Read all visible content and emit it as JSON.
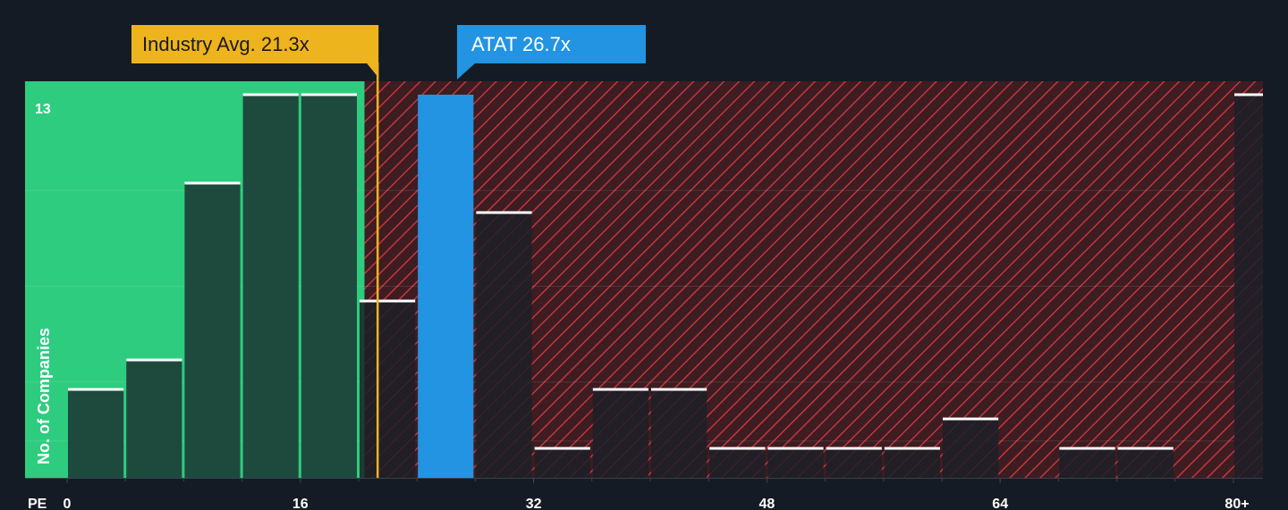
{
  "chart_data": {
    "type": "bar",
    "title": "",
    "xlabel": "PE",
    "ylabel": "No. of Companies",
    "x_bin_width": 4,
    "xlim": [
      0,
      82
    ],
    "ylim": [
      0,
      13.5
    ],
    "x_ticks": [
      {
        "value": 0,
        "label": "0"
      },
      {
        "value": 16,
        "label": "16"
      },
      {
        "value": 32,
        "label": "32"
      },
      {
        "value": 48,
        "label": "48"
      },
      {
        "value": 64,
        "label": "64"
      },
      {
        "value": 80,
        "label": "80+"
      }
    ],
    "y_ticks": [
      {
        "value": 13,
        "label": "13"
      }
    ],
    "bins": [
      {
        "start": 0,
        "count": 3
      },
      {
        "start": 4,
        "count": 4
      },
      {
        "start": 8,
        "count": 10
      },
      {
        "start": 12,
        "count": 13
      },
      {
        "start": 16,
        "count": 13
      },
      {
        "start": 20,
        "count": 6
      },
      {
        "start": 24,
        "count": 13
      },
      {
        "start": 28,
        "count": 9
      },
      {
        "start": 32,
        "count": 1
      },
      {
        "start": 36,
        "count": 3
      },
      {
        "start": 40,
        "count": 3
      },
      {
        "start": 44,
        "count": 1
      },
      {
        "start": 48,
        "count": 1
      },
      {
        "start": 52,
        "count": 1
      },
      {
        "start": 56,
        "count": 1
      },
      {
        "start": 60,
        "count": 2
      },
      {
        "start": 64,
        "count": 0
      },
      {
        "start": 68,
        "count": 1
      },
      {
        "start": 72,
        "count": 1
      },
      {
        "start": 76,
        "count": 0
      },
      {
        "start": 80,
        "count": 13
      }
    ],
    "highlight_bin_start": 24,
    "fair_zone_max": 20.4,
    "annotations": {
      "industry": {
        "label": "Industry Avg. 21.3x",
        "value": 21.3
      },
      "company": {
        "label": "ATAT 26.7x",
        "value": 26.7
      }
    },
    "colors": {
      "background": "#151b24",
      "fair_zone": "#2ecc7f",
      "bar_in_zone": "#1e4a3d",
      "bar_expensive": "#1c1f27",
      "hatch_background": "#3d1c22",
      "hatch_line": "#c0373d",
      "highlight_bar": "#2394e2",
      "industry_marker": "#eeb41e",
      "bar_cap": "#ffffff",
      "gridline": "rgba(255,255,255,0.10)",
      "axis": "#3a4250"
    },
    "grid": true,
    "legend": "none"
  }
}
